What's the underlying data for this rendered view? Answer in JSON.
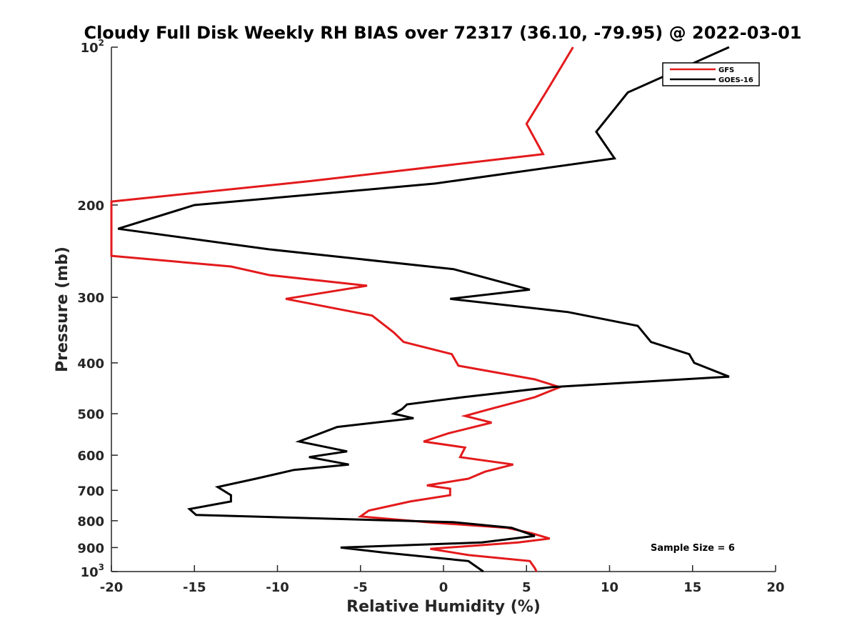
{
  "chart_data": {
    "type": "line",
    "title": "Cloudy Full Disk Weekly RH BIAS over 72317 (36.10, -79.95) @ 2022-03-01",
    "xlabel": "Relative Humidity (%)",
    "ylabel": "Pressure (mb)",
    "xlim": [
      -20,
      20
    ],
    "ylim": [
      100,
      1000
    ],
    "yscale": "log",
    "y_reversed": true,
    "x_ticks": [
      "-20",
      "-15",
      "-10",
      "-5",
      "0",
      "5",
      "10",
      "15",
      "20"
    ],
    "y_ticks": [
      {
        "value": 100,
        "base": "10",
        "exp": "2"
      },
      {
        "value": 200,
        "base": "200",
        "exp": ""
      },
      {
        "value": 300,
        "base": "300",
        "exp": ""
      },
      {
        "value": 400,
        "base": "400",
        "exp": ""
      },
      {
        "value": 500,
        "base": "500",
        "exp": ""
      },
      {
        "value": 600,
        "base": "600",
        "exp": ""
      },
      {
        "value": 700,
        "base": "700",
        "exp": ""
      },
      {
        "value": 800,
        "base": "800",
        "exp": ""
      },
      {
        "value": 900,
        "base": "900",
        "exp": ""
      },
      {
        "value": 1000,
        "base": "10",
        "exp": "3"
      }
    ],
    "legend_position": "top-right",
    "grid": false,
    "series": [
      {
        "name": "GFS",
        "color": "#e31a1c",
        "points": [
          [
            7.8,
            100
          ],
          [
            6.3,
            120
          ],
          [
            5.0,
            140
          ],
          [
            6.0,
            160
          ],
          [
            -8.0,
            180
          ],
          [
            -20.0,
            197
          ],
          [
            -20.0,
            250
          ],
          [
            -12.8,
            262
          ],
          [
            -10.5,
            272
          ],
          [
            -4.6,
            285
          ],
          [
            -9.5,
            302
          ],
          [
            -4.3,
            325
          ],
          [
            -3.0,
            350
          ],
          [
            -2.4,
            365
          ],
          [
            0.5,
            385
          ],
          [
            0.9,
            405
          ],
          [
            5.5,
            430
          ],
          [
            7.0,
            445
          ],
          [
            5.5,
            465
          ],
          [
            2.8,
            490
          ],
          [
            1.3,
            505
          ],
          [
            2.9,
            520
          ],
          [
            0.3,
            545
          ],
          [
            -1.2,
            565
          ],
          [
            1.3,
            580
          ],
          [
            1.0,
            605
          ],
          [
            4.2,
            625
          ],
          [
            2.5,
            645
          ],
          [
            1.5,
            665
          ],
          [
            -1.0,
            685
          ],
          [
            0.4,
            695
          ],
          [
            0.4,
            715
          ],
          [
            -2.0,
            735
          ],
          [
            -4.5,
            765
          ],
          [
            -5.0,
            785
          ],
          [
            -1.0,
            805
          ],
          [
            3.8,
            825
          ],
          [
            5.3,
            845
          ],
          [
            6.4,
            865
          ],
          [
            4.5,
            880
          ],
          [
            -0.8,
            905
          ],
          [
            1.5,
            930
          ],
          [
            5.2,
            955
          ],
          [
            5.5,
            985
          ],
          [
            5.6,
            1000
          ]
        ]
      },
      {
        "name": "GOES-16",
        "color": "#000000",
        "points": [
          [
            17.2,
            100
          ],
          [
            11.1,
            122
          ],
          [
            9.2,
            145
          ],
          [
            10.3,
            163
          ],
          [
            -0.5,
            182
          ],
          [
            -15.0,
            200
          ],
          [
            -19.6,
            222
          ],
          [
            -10.5,
            243
          ],
          [
            0.6,
            265
          ],
          [
            5.2,
            290
          ],
          [
            0.4,
            302
          ],
          [
            7.5,
            320
          ],
          [
            11.7,
            340
          ],
          [
            12.5,
            365
          ],
          [
            14.8,
            385
          ],
          [
            15.1,
            400
          ],
          [
            17.2,
            425
          ],
          [
            6.5,
            445
          ],
          [
            1.2,
            465
          ],
          [
            -2.2,
            480
          ],
          [
            -2.5,
            490
          ],
          [
            -3.0,
            500
          ],
          [
            -1.8,
            510
          ],
          [
            -6.4,
            530
          ],
          [
            -8.7,
            565
          ],
          [
            -5.8,
            590
          ],
          [
            -8.1,
            605
          ],
          [
            -5.7,
            625
          ],
          [
            -9.0,
            640
          ],
          [
            -11.3,
            665
          ],
          [
            -13.6,
            690
          ],
          [
            -12.8,
            715
          ],
          [
            -12.8,
            735
          ],
          [
            -15.3,
            760
          ],
          [
            -14.9,
            780
          ],
          [
            0.6,
            805
          ],
          [
            4.1,
            825
          ],
          [
            5.5,
            855
          ],
          [
            2.3,
            880
          ],
          [
            -6.2,
            900
          ],
          [
            -3.6,
            920
          ],
          [
            1.5,
            955
          ],
          [
            1.6,
            960
          ],
          [
            2.4,
            1000
          ]
        ]
      }
    ],
    "annotations": [
      "Sample Size = 6"
    ]
  }
}
